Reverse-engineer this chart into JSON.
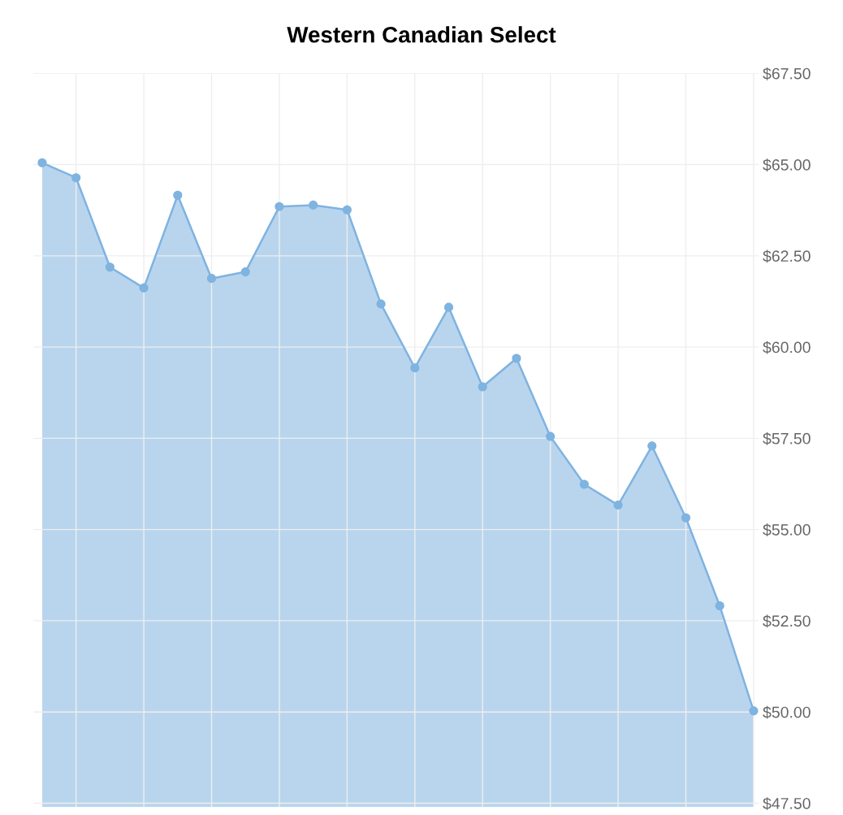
{
  "chart_data": {
    "type": "area",
    "title": "Western Canadian Select",
    "categories": [
      null,
      null,
      null,
      null,
      null,
      null,
      null,
      null,
      null,
      null,
      null,
      null,
      null,
      null,
      null,
      null,
      null,
      null,
      null,
      null,
      null,
      null
    ],
    "series": [
      {
        "color": "#7fb3e0",
        "values": [
          65.05,
          64.64,
          62.19,
          61.62,
          64.16,
          61.88,
          62.06,
          63.85,
          63.89,
          63.76,
          61.18,
          59.43,
          61.09,
          58.91,
          59.69,
          57.55,
          56.24,
          55.67,
          57.29,
          55.32,
          52.91,
          50.03
        ]
      }
    ],
    "ylim": [
      47.4,
      67.5
    ],
    "yticks": [
      {
        "value": 47.5,
        "label": "$47.50"
      },
      {
        "value": 50,
        "label": "$50.00"
      },
      {
        "value": 52.5,
        "label": "$52.50"
      },
      {
        "value": 55,
        "label": "$55.00"
      },
      {
        "value": 57.5,
        "label": "$57.50"
      },
      {
        "value": 60,
        "label": "$60.00"
      },
      {
        "value": 62.5,
        "label": "$62.50"
      },
      {
        "value": 65,
        "label": "$65.00"
      },
      {
        "value": 67.5,
        "label": "$67.50"
      }
    ],
    "tick_labels": "y",
    "grid": true,
    "marker": "circle",
    "line_style": "solid",
    "legend": false
  }
}
